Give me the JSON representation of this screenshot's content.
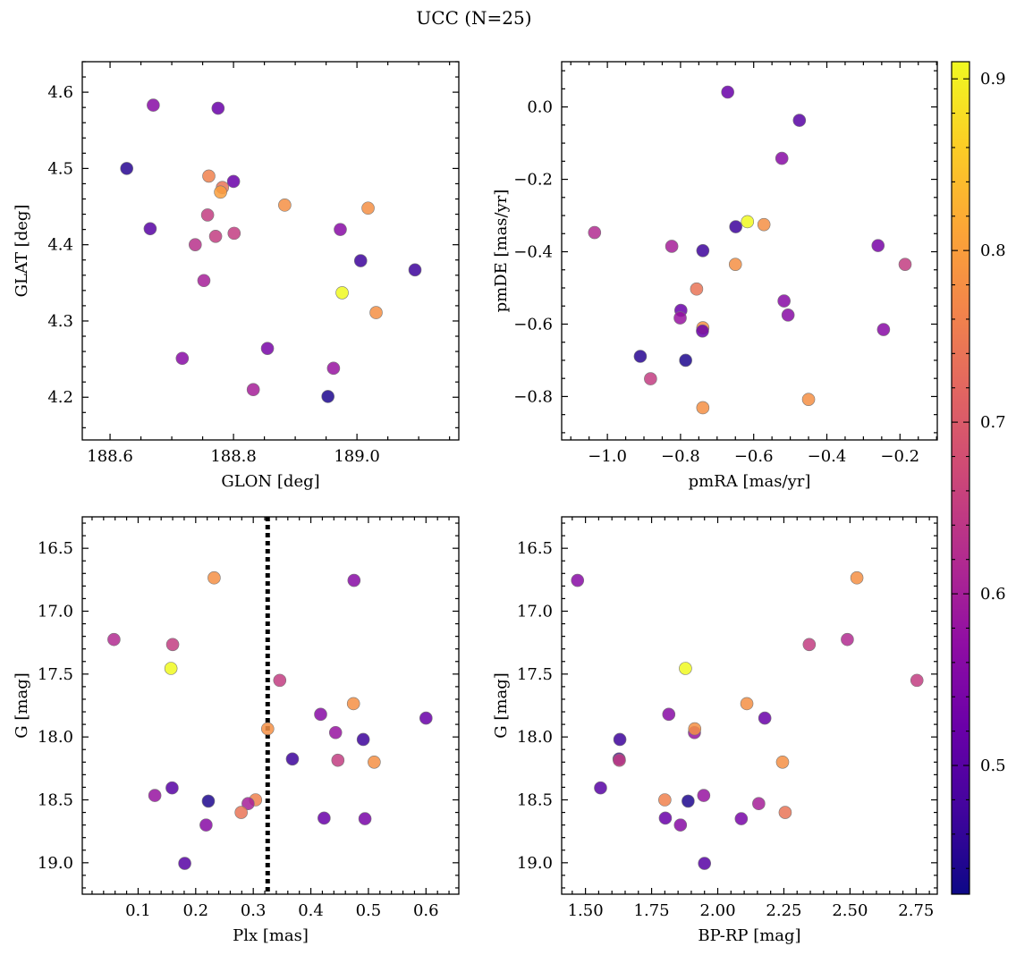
{
  "chart_data": {
    "type": "scatter",
    "title": "UCC (N=25)",
    "colorbar": {
      "label": "",
      "range": [
        0.425,
        0.91
      ],
      "ticks": [
        0.5,
        0.6,
        0.7,
        0.8,
        0.9
      ],
      "tick_labels": [
        "0.5",
        "0.6",
        "0.7",
        "0.8",
        "0.9"
      ],
      "colormap": "plasma"
    },
    "panels": [
      {
        "id": "glon-glat",
        "xlabel": "GLON [deg]",
        "ylabel": "GLAT [deg]",
        "xlim": [
          188.555,
          189.165
        ],
        "ylim": [
          4.144,
          4.64
        ],
        "inverted_y": false,
        "xticks": [
          188.6,
          188.8,
          189.0
        ],
        "xtick_labels": [
          "188.6",
          "188.8",
          "189.0"
        ],
        "yticks": [
          4.2,
          4.3,
          4.4,
          4.5,
          4.6
        ],
        "ytick_labels": [
          "4.2",
          "4.3",
          "4.4",
          "4.5",
          "4.6"
        ],
        "points": [
          [
            188.627,
            4.5,
            0.45
          ],
          [
            188.67,
            4.583,
            0.56
          ],
          [
            188.775,
            4.579,
            0.52
          ],
          [
            188.665,
            4.421,
            0.5
          ],
          [
            188.76,
            4.49,
            0.76
          ],
          [
            188.782,
            4.475,
            0.74
          ],
          [
            188.779,
            4.469,
            0.8
          ],
          [
            188.8,
            4.483,
            0.52
          ],
          [
            188.883,
            4.452,
            0.78
          ],
          [
            189.018,
            4.448,
            0.78
          ],
          [
            188.758,
            4.439,
            0.65
          ],
          [
            188.771,
            4.411,
            0.65
          ],
          [
            188.801,
            4.415,
            0.65
          ],
          [
            188.738,
            4.4,
            0.63
          ],
          [
            188.973,
            4.42,
            0.56
          ],
          [
            189.006,
            4.379,
            0.47
          ],
          [
            189.094,
            4.367,
            0.47
          ],
          [
            188.752,
            4.353,
            0.6
          ],
          [
            188.976,
            4.337,
            0.91
          ],
          [
            189.031,
            4.311,
            0.78
          ],
          [
            188.855,
            4.264,
            0.54
          ],
          [
            188.717,
            4.251,
            0.56
          ],
          [
            188.962,
            4.238,
            0.58
          ],
          [
            188.832,
            4.21,
            0.6
          ],
          [
            188.953,
            4.201,
            0.44
          ]
        ]
      },
      {
        "id": "pmra-pmde",
        "xlabel": "pmRA [mas/yr]",
        "ylabel": "pmDE [mas/yr]",
        "xlim": [
          -1.125,
          -0.098
        ],
        "ylim": [
          -0.92,
          0.125
        ],
        "inverted_y": false,
        "xticks": [
          -1.0,
          -0.8,
          -0.6,
          -0.4,
          -0.2
        ],
        "xtick_labels": [
          "−1.0",
          "−0.8",
          "−0.6",
          "−0.4",
          "−0.2"
        ],
        "yticks": [
          -0.8,
          -0.6,
          -0.4,
          -0.2,
          0.0
        ],
        "ytick_labels": [
          "−0.8",
          "−0.6",
          "−0.4",
          "−0.2",
          "0.0"
        ],
        "points": [
          [
            -0.671,
            0.041,
            0.52
          ],
          [
            -0.475,
            -0.037,
            0.5
          ],
          [
            -0.523,
            -0.142,
            0.56
          ],
          [
            -1.035,
            -0.347,
            0.62
          ],
          [
            -0.824,
            -0.385,
            0.6
          ],
          [
            -0.739,
            -0.397,
            0.47
          ],
          [
            -0.649,
            -0.331,
            0.47
          ],
          [
            -0.617,
            -0.317,
            0.91
          ],
          [
            -0.572,
            -0.325,
            0.78
          ],
          [
            -0.65,
            -0.435,
            0.78
          ],
          [
            -0.26,
            -0.383,
            0.54
          ],
          [
            -0.186,
            -0.435,
            0.65
          ],
          [
            -0.756,
            -0.503,
            0.74
          ],
          [
            -0.517,
            -0.536,
            0.56
          ],
          [
            -0.799,
            -0.562,
            0.52
          ],
          [
            -0.801,
            -0.583,
            0.58
          ],
          [
            -0.739,
            -0.61,
            0.78
          ],
          [
            -0.74,
            -0.619,
            0.52
          ],
          [
            -0.506,
            -0.575,
            0.56
          ],
          [
            -0.245,
            -0.615,
            0.56
          ],
          [
            -0.91,
            -0.689,
            0.45
          ],
          [
            -0.786,
            -0.7,
            0.44
          ],
          [
            -0.882,
            -0.751,
            0.65
          ],
          [
            -0.739,
            -0.831,
            0.78
          ],
          [
            -0.45,
            -0.808,
            0.78
          ]
        ]
      },
      {
        "id": "plx-g",
        "xlabel": "Plx [mas]",
        "ylabel": "G [mag]",
        "xlim": [
          0.003,
          0.657
        ],
        "ylim": [
          19.25,
          16.25
        ],
        "inverted_y": true,
        "vline": 0.325,
        "xticks": [
          0.1,
          0.2,
          0.3,
          0.4,
          0.5,
          0.6
        ],
        "xtick_labels": [
          "0.1",
          "0.2",
          "0.3",
          "0.4",
          "0.5",
          "0.6"
        ],
        "yticks": [
          16.5,
          17.0,
          17.5,
          18.0,
          18.5,
          19.0
        ],
        "ytick_labels": [
          "16.5",
          "17.0",
          "17.5",
          "18.0",
          "18.5",
          "19.0"
        ],
        "points": [
          [
            0.232,
            16.735,
            0.78
          ],
          [
            0.475,
            16.755,
            0.56
          ],
          [
            0.058,
            17.225,
            0.62
          ],
          [
            0.16,
            17.265,
            0.65
          ],
          [
            0.157,
            17.455,
            0.91
          ],
          [
            0.346,
            17.55,
            0.65
          ],
          [
            0.474,
            17.735,
            0.78
          ],
          [
            0.417,
            17.82,
            0.56
          ],
          [
            0.6,
            17.85,
            0.52
          ],
          [
            0.325,
            17.935,
            0.78
          ],
          [
            0.443,
            17.965,
            0.58
          ],
          [
            0.491,
            18.02,
            0.47
          ],
          [
            0.368,
            18.175,
            0.47
          ],
          [
            0.447,
            18.185,
            0.65
          ],
          [
            0.51,
            18.2,
            0.78
          ],
          [
            0.159,
            18.405,
            0.5
          ],
          [
            0.129,
            18.465,
            0.58
          ],
          [
            0.222,
            18.51,
            0.44
          ],
          [
            0.304,
            18.5,
            0.76
          ],
          [
            0.291,
            18.53,
            0.6
          ],
          [
            0.279,
            18.6,
            0.74
          ],
          [
            0.423,
            18.645,
            0.52
          ],
          [
            0.218,
            18.7,
            0.56
          ],
          [
            0.494,
            18.65,
            0.54
          ],
          [
            0.181,
            19.005,
            0.5
          ]
        ]
      },
      {
        "id": "bprp-g",
        "xlabel": "BP-RP [mag]",
        "ylabel": "G [mag]",
        "xlim": [
          1.41,
          2.83
        ],
        "ylim": [
          19.25,
          16.25
        ],
        "inverted_y": true,
        "xticks": [
          1.5,
          1.75,
          2.0,
          2.25,
          2.5,
          2.75
        ],
        "xtick_labels": [
          "1.50",
          "1.75",
          "2.00",
          "2.25",
          "2.50",
          "2.75"
        ],
        "yticks": [
          16.5,
          17.0,
          17.5,
          18.0,
          18.5,
          19.0
        ],
        "ytick_labels": [
          "16.5",
          "17.0",
          "17.5",
          "18.0",
          "18.5",
          "19.0"
        ],
        "points": [
          [
            1.47,
            16.755,
            0.56
          ],
          [
            2.526,
            16.735,
            0.78
          ],
          [
            2.49,
            17.225,
            0.62
          ],
          [
            2.346,
            17.265,
            0.65
          ],
          [
            1.878,
            17.455,
            0.91
          ],
          [
            2.753,
            17.55,
            0.65
          ],
          [
            2.11,
            17.735,
            0.78
          ],
          [
            1.815,
            17.82,
            0.56
          ],
          [
            2.178,
            17.85,
            0.52
          ],
          [
            1.912,
            17.965,
            0.58
          ],
          [
            1.913,
            17.935,
            0.78
          ],
          [
            1.63,
            18.02,
            0.47
          ],
          [
            1.627,
            18.175,
            0.47
          ],
          [
            1.628,
            18.185,
            0.65
          ],
          [
            2.245,
            18.2,
            0.78
          ],
          [
            1.557,
            18.405,
            0.5
          ],
          [
            1.8,
            18.5,
            0.76
          ],
          [
            1.888,
            18.51,
            0.44
          ],
          [
            1.947,
            18.465,
            0.58
          ],
          [
            2.155,
            18.53,
            0.6
          ],
          [
            2.255,
            18.6,
            0.74
          ],
          [
            1.802,
            18.645,
            0.52
          ],
          [
            1.859,
            18.7,
            0.56
          ],
          [
            2.089,
            18.65,
            0.54
          ],
          [
            1.95,
            19.005,
            0.5
          ]
        ]
      }
    ]
  }
}
